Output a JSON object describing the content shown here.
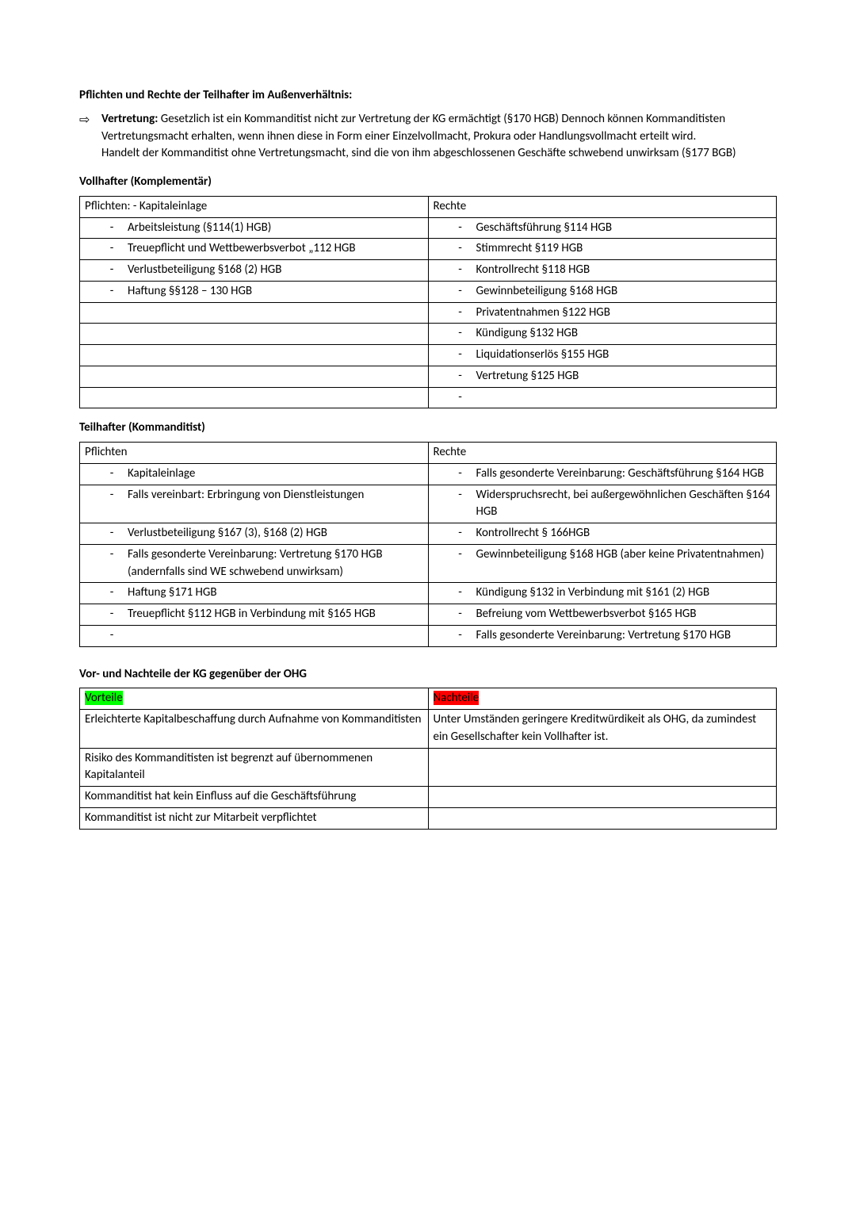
{
  "headings": {
    "h1": "Pflichten und Rechte der Teilhafter im Außenverhältnis:",
    "vollhafter": "Vollhafter (Komplementär)",
    "teilhafter": "Teilhafter (Kommanditist)",
    "vornach": "Vor- und Nachteile der KG gegenüber der OHG"
  },
  "vertretung": {
    "label": "Vertretung:",
    "body1": " Gesetzlich ist ein Kommanditist nicht zur Vertretung der KG ermächtigt (§170 HGB) Dennoch können Kommanditisten Vertretungsmacht erhalten, wenn ihnen diese in Form einer Einzelvollmacht, Prokura oder Handlungsvollmacht erteilt wird.",
    "body2": "Handelt der Kommanditist ohne Vertretungsmacht, sind die von ihm abgeschlossenen Geschäfte schwebend unwirksam (§177 BGB)"
  },
  "table1": {
    "hdr_left": "Pflichten: - Kapitaleinlage",
    "hdr_right": "Rechte",
    "rows": [
      {
        "l": "Arbeitsleistung (§114(1) HGB)",
        "r": "Geschäftsführung §114 HGB"
      },
      {
        "l": "Treuepflicht und Wettbewerbsverbot „112 HGB",
        "r": "Stimmrecht §119 HGB"
      },
      {
        "l": "Verlustbeteiligung §168 (2) HGB",
        "r": "Kontrollrecht §118 HGB"
      },
      {
        "l": "Haftung §§128 – 130 HGB",
        "r": "Gewinnbeteiligung §168 HGB"
      },
      {
        "l": "",
        "r": "Privatentnahmen §122 HGB"
      },
      {
        "l": "",
        "r": "Kündigung §132 HGB"
      },
      {
        "l": "",
        "r": "Liquidationserlös §155 HGB"
      },
      {
        "l": "",
        "r": "Vertretung §125 HGB"
      },
      {
        "l": "",
        "r": ""
      }
    ]
  },
  "table2": {
    "hdr_left": "Pflichten",
    "hdr_right": "Rechte",
    "rows": [
      {
        "l": "Kapitaleinlage",
        "r": "Falls gesonderte Vereinbarung: Geschäftsführung §164 HGB"
      },
      {
        "l": "Falls vereinbart: Erbringung von Dienstleistungen",
        "r": "Widerspruchsrecht, bei außergewöhnlichen Geschäften §164 HGB"
      },
      {
        "l": "Verlustbeteiligung §167 (3), §168 (2) HGB",
        "r": "Kontrollrecht § 166HGB"
      },
      {
        "l": "Falls gesonderte Vereinbarung: Vertretung §170 HGB (andernfalls sind WE schwebend unwirksam)",
        "r": "Gewinnbeteiligung §168 HGB (aber keine Privatentnahmen)"
      },
      {
        "l": "Haftung §171 HGB",
        "r": "Kündigung §132 in Verbindung mit §161 (2) HGB"
      },
      {
        "l": "Treuepflicht §112 HGB  in Verbindung mit §165 HGB",
        "r": "Befreiung vom Wettbewerbsverbot §165 HGB"
      },
      {
        "l": "",
        "r": "Falls gesonderte Vereinbarung: Vertretung §170 HGB"
      }
    ]
  },
  "table3": {
    "hdr_left": "Vorteile",
    "hdr_right": "Nachteile",
    "rows": [
      {
        "l": "Erleichterte Kapitalbeschaffung durch Aufnahme von Kommanditisten",
        "r": "Unter Umständen geringere Kreditwürdikeit als OHG, da zumindest ein Gesellschafter kein Vollhafter ist."
      },
      {
        "l": "Risiko des Kommanditisten ist begrenzt auf übernommenen Kapitalanteil",
        "r": ""
      },
      {
        "l": "Kommanditist hat kein Einfluss auf die Geschäftsführung",
        "r": ""
      },
      {
        "l": "Kommanditist ist nicht zur Mitarbeit verpflichtet",
        "r": ""
      }
    ]
  },
  "colors": {
    "green": "#00ff00",
    "red": "#ff0000"
  }
}
